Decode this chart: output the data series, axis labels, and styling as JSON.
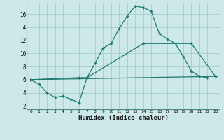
{
  "xlabel": "Humidex (Indice chaleur)",
  "bg_color": "#cde8e8",
  "grid_color": "#aad0d0",
  "line_color": "#1a7a6e",
  "xlim": [
    -0.5,
    23.5
  ],
  "ylim": [
    1.5,
    17.5
  ],
  "yticks": [
    2,
    4,
    6,
    8,
    10,
    12,
    14,
    16
  ],
  "xticks": [
    0,
    1,
    2,
    3,
    4,
    5,
    6,
    7,
    8,
    9,
    10,
    11,
    12,
    13,
    14,
    15,
    16,
    17,
    18,
    19,
    20,
    21,
    22,
    23
  ],
  "curve1_x": [
    0,
    1,
    2,
    3,
    4,
    5,
    6,
    7,
    8,
    9,
    10,
    11,
    12,
    13,
    14,
    15,
    16,
    17,
    18,
    19,
    20,
    21,
    22
  ],
  "curve1_y": [
    6.0,
    5.3,
    4.0,
    3.3,
    3.5,
    3.0,
    2.5,
    6.3,
    8.5,
    10.8,
    11.5,
    13.8,
    15.7,
    17.2,
    17.0,
    16.4,
    13.0,
    12.2,
    11.5,
    9.5,
    7.3,
    6.5,
    6.3
  ],
  "curve2_x": [
    0,
    23
  ],
  "curve2_y": [
    6.0,
    6.5
  ],
  "curve3_x": [
    0,
    6,
    7,
    14,
    20,
    23
  ],
  "curve3_y": [
    6.0,
    6.3,
    6.3,
    11.5,
    11.5,
    6.5
  ]
}
